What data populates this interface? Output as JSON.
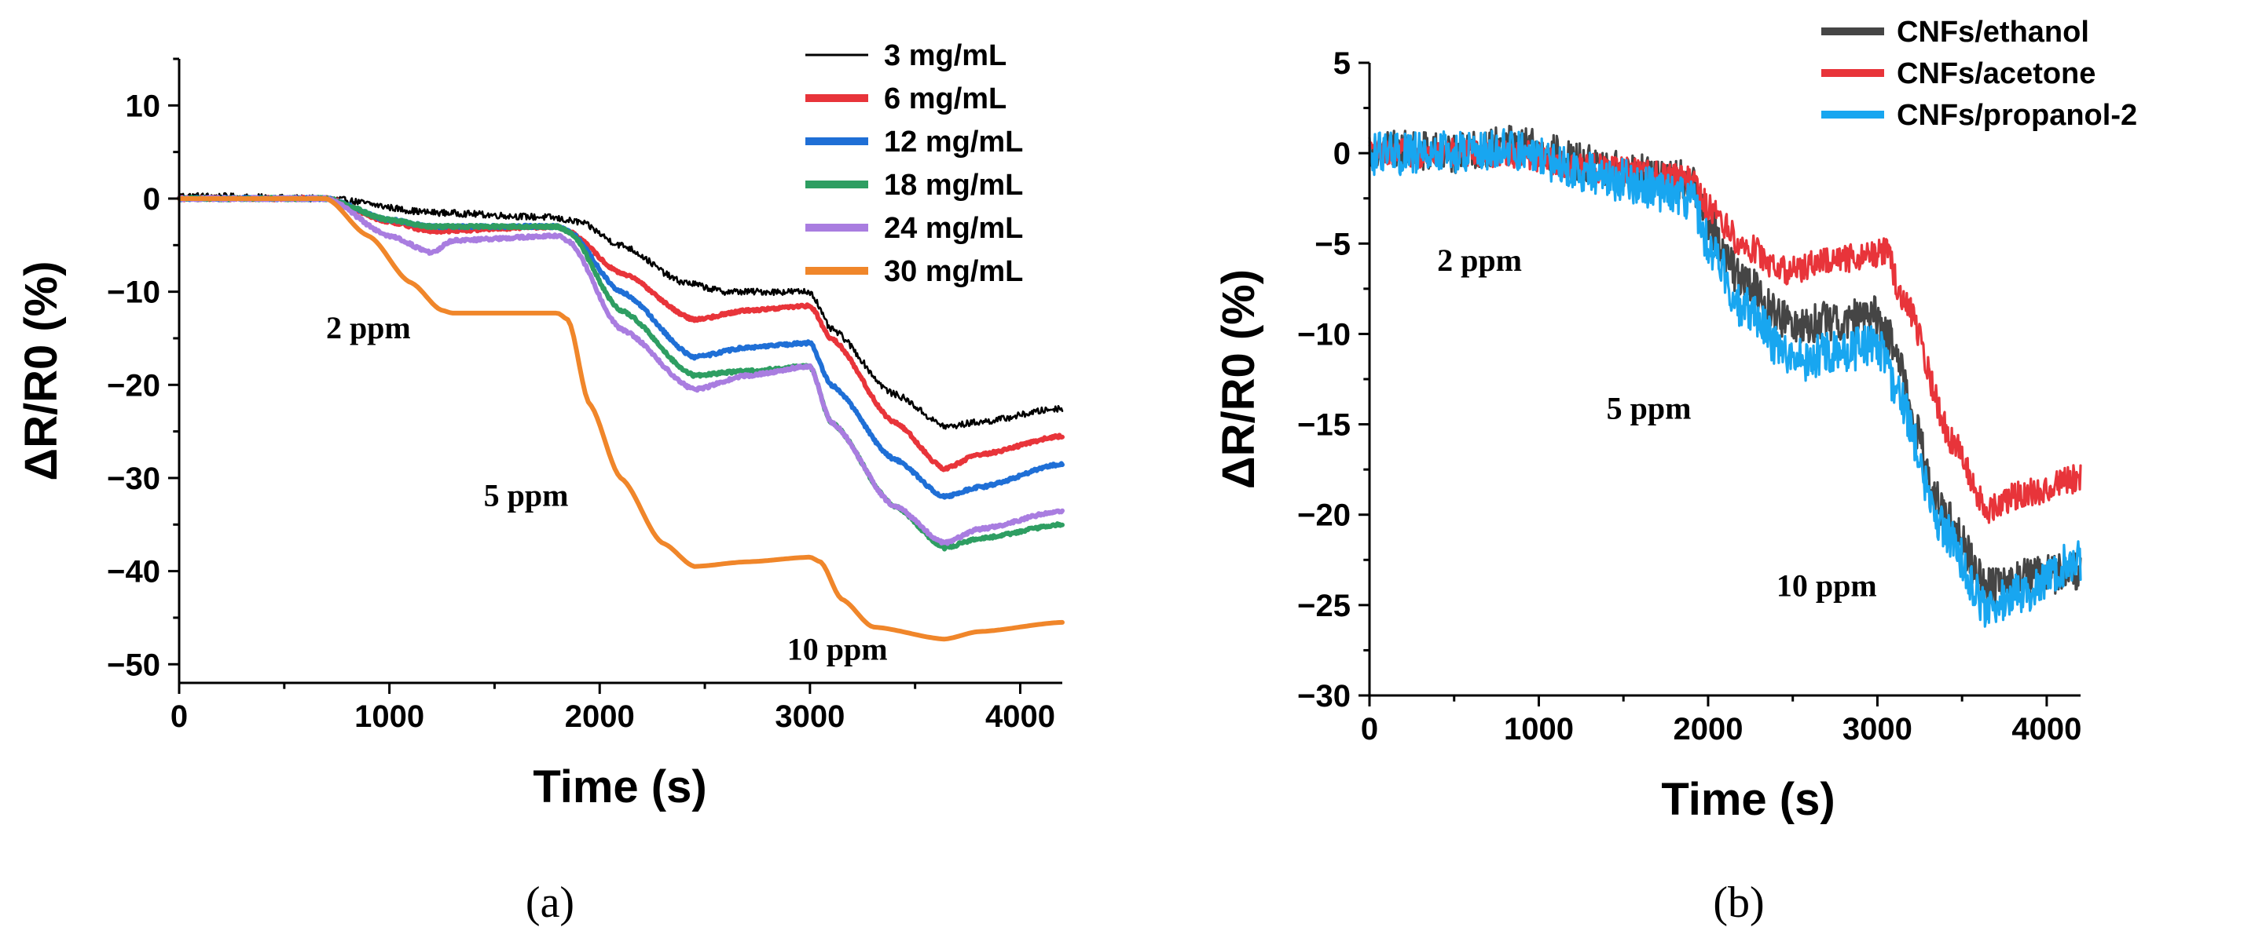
{
  "panels": [
    {
      "label": "(a)"
    },
    {
      "label": "(b)"
    }
  ],
  "chart_data": [
    {
      "type": "line",
      "panel": "(a)",
      "xlabel": "Time (s)",
      "ylabel": "ΔR/R0 (%)",
      "xlim": [
        0,
        4200
      ],
      "ylim": [
        -52,
        15
      ],
      "xticks": [
        0,
        1000,
        2000,
        3000,
        4000
      ],
      "yticks": [
        10,
        0,
        -10,
        -20,
        -30,
        -40,
        -50
      ],
      "legend_position": "top-right",
      "annotations": [
        {
          "text": "2 ppm",
          "x": 900,
          "y": -15
        },
        {
          "text": "5 ppm",
          "x": 1650,
          "y": -33
        },
        {
          "text": "10 ppm",
          "x": 3130,
          "y": -49.5
        }
      ],
      "series": [
        {
          "name": "3 mg/mL",
          "color": "#000000",
          "noise": 0.7,
          "x": [
            0,
            700,
            1200,
            1750,
            1900,
            2100,
            2400,
            2600,
            3000,
            3100,
            3400,
            3650,
            3800,
            4200
          ],
          "y": [
            0.3,
            0,
            -1.5,
            -2,
            -2.5,
            -5,
            -9,
            -10,
            -10,
            -14,
            -21,
            -24.5,
            -24,
            -22.5
          ]
        },
        {
          "name": "6 mg/mL",
          "color": "#e8343a",
          "noise": 0.3,
          "x": [
            0,
            700,
            1000,
            1200,
            1800,
            1850,
            2100,
            2450,
            2700,
            3000,
            3100,
            3400,
            3640,
            3800,
            4200
          ],
          "y": [
            0,
            0,
            -2.5,
            -3.5,
            -3,
            -3.5,
            -8,
            -13,
            -12,
            -11.5,
            -15,
            -24,
            -29,
            -27.5,
            -25.5
          ]
        },
        {
          "name": "12 mg/mL",
          "color": "#1f6fd6",
          "noise": 0.3,
          "x": [
            0,
            700,
            1000,
            1200,
            1800,
            1850,
            2100,
            2450,
            2700,
            3000,
            3100,
            3400,
            3640,
            3800,
            4200
          ],
          "y": [
            0,
            0,
            -2.3,
            -3,
            -3,
            -3.5,
            -10,
            -17,
            -16,
            -15.5,
            -20,
            -28,
            -32,
            -31,
            -28.5
          ]
        },
        {
          "name": "18 mg/mL",
          "color": "#2e9e62",
          "noise": 0.3,
          "x": [
            0,
            700,
            1000,
            1200,
            1800,
            1850,
            2100,
            2450,
            2700,
            3000,
            3100,
            3400,
            3640,
            3800,
            4200
          ],
          "y": [
            0,
            0,
            -2.3,
            -3,
            -3,
            -3.5,
            -12,
            -19,
            -18.5,
            -18,
            -24,
            -33,
            -37.5,
            -36.5,
            -35
          ]
        },
        {
          "name": "24 mg/mL",
          "color": "#a97de0",
          "noise": 0.3,
          "x": [
            0,
            700,
            1000,
            1200,
            1300,
            1800,
            1850,
            2100,
            2450,
            2700,
            3000,
            3100,
            3400,
            3640,
            3800,
            4200
          ],
          "y": [
            0,
            0,
            -4,
            -5.8,
            -4.5,
            -4,
            -4.5,
            -14,
            -20.5,
            -19,
            -18,
            -24,
            -33,
            -37,
            -35.5,
            -33.5
          ]
        },
        {
          "name": "30 mg/mL",
          "color": "#f0862a",
          "noise": 0,
          "x": [
            0,
            700,
            900,
            1100,
            1250,
            1300,
            1800,
            1850,
            1950,
            2100,
            2300,
            2450,
            2700,
            3000,
            3050,
            3150,
            3300,
            3640,
            3800,
            4200
          ],
          "y": [
            0,
            0,
            -4,
            -9,
            -12,
            -12.3,
            -12.3,
            -13,
            -22,
            -30,
            -37,
            -39.5,
            -39,
            -38.5,
            -39,
            -43,
            -46,
            -47.3,
            -46.5,
            -45.5
          ]
        }
      ]
    },
    {
      "type": "line",
      "panel": "(b)",
      "xlabel": "Time (s)",
      "ylabel": "ΔR/R0 (%)",
      "xlim": [
        0,
        4200
      ],
      "ylim": [
        -30,
        5
      ],
      "xticks": [
        0,
        1000,
        2000,
        3000,
        4000
      ],
      "yticks": [
        5,
        0,
        -5,
        -10,
        -15,
        -20,
        -25,
        -30
      ],
      "legend_position": "top-right",
      "annotations": [
        {
          "text": "2 ppm",
          "x": 650,
          "y": -6.5
        },
        {
          "text": "5 ppm",
          "x": 1650,
          "y": -14.7
        },
        {
          "text": "10 ppm",
          "x": 2700,
          "y": -24.5
        }
      ],
      "series": [
        {
          "name": "CNFs/ethanol",
          "color": "#454545",
          "noise": 2.2,
          "x": [
            0,
            500,
            800,
            1500,
            1900,
            2000,
            2200,
            2500,
            2800,
            3000,
            3050,
            3400,
            3650,
            3800,
            4200
          ],
          "y": [
            0.3,
            0,
            0.5,
            -1,
            -1.5,
            -4,
            -7,
            -9.5,
            -9.2,
            -9,
            -10,
            -20,
            -24,
            -23.5,
            -23.2
          ]
        },
        {
          "name": "CNFs/acetone",
          "color": "#e8343a",
          "noise": 1.6,
          "x": [
            0,
            500,
            800,
            1500,
            1900,
            2000,
            2200,
            2450,
            2700,
            3050,
            3150,
            3450,
            3650,
            3800,
            4200
          ],
          "y": [
            0,
            0,
            0,
            -1,
            -1.5,
            -3,
            -5,
            -6.5,
            -6,
            -5.5,
            -8,
            -16,
            -19.8,
            -19,
            -18
          ]
        },
        {
          "name": "CNFs/propanol-2",
          "color": "#18a6f0",
          "noise": 2.4,
          "x": [
            0,
            500,
            800,
            1500,
            1900,
            2000,
            2200,
            2500,
            2800,
            3000,
            3100,
            3400,
            3650,
            3800,
            4200
          ],
          "y": [
            0,
            0,
            0.2,
            -1.5,
            -2.5,
            -5,
            -8.5,
            -11.5,
            -11,
            -10.5,
            -13,
            -21,
            -25.3,
            -24.5,
            -22.5
          ]
        }
      ]
    }
  ]
}
